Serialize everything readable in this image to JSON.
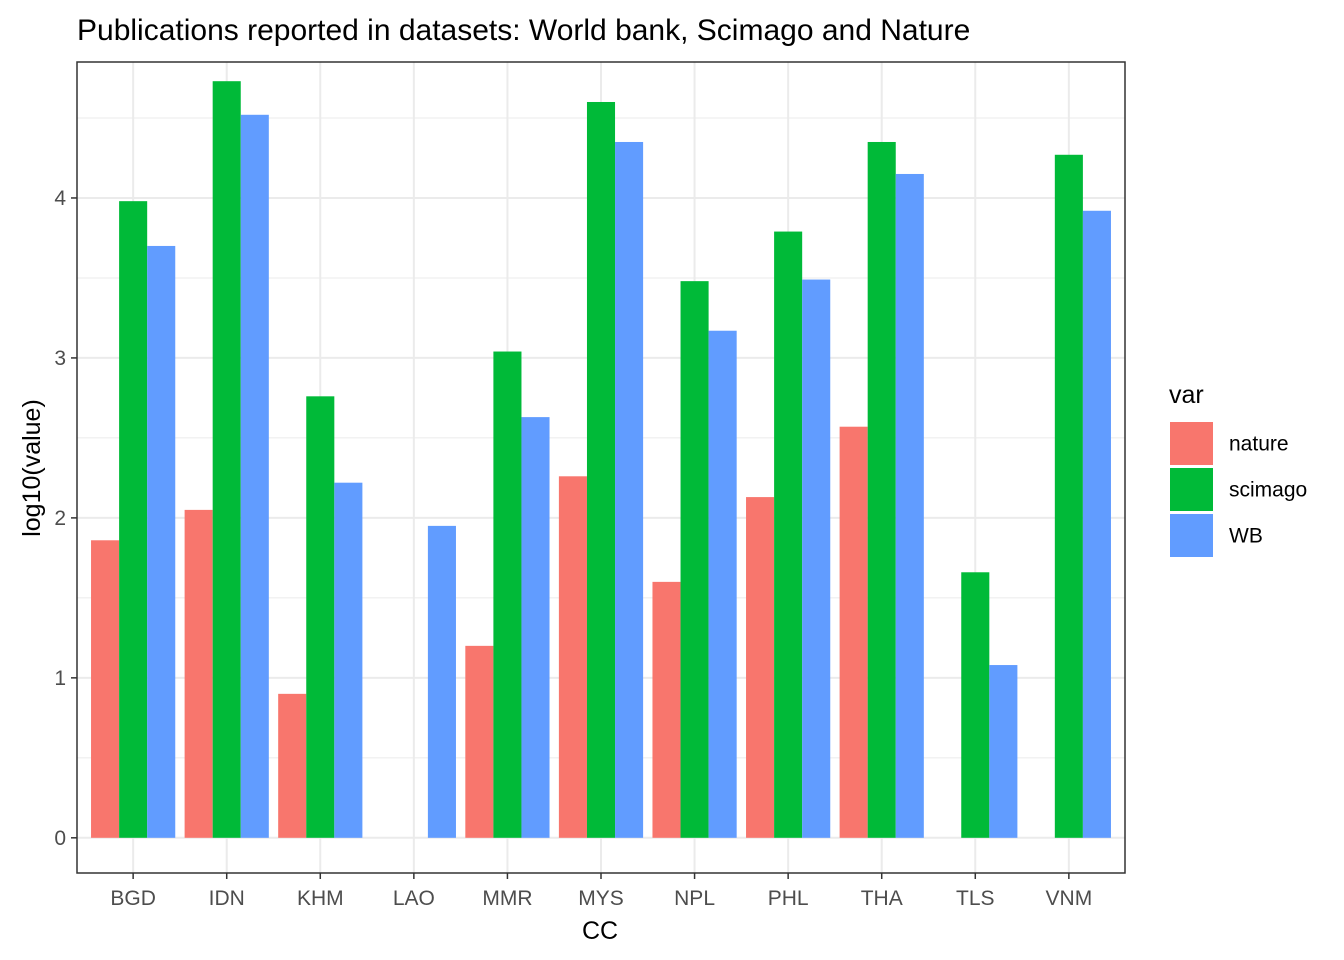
{
  "chart_data": {
    "type": "bar",
    "title": "Publications reported in datasets: World bank, Scimago and Nature",
    "xlabel": "CC",
    "ylabel": "log10(value)",
    "categories": [
      "BGD",
      "IDN",
      "KHM",
      "LAO",
      "MMR",
      "MYS",
      "NPL",
      "PHL",
      "THA",
      "TLS",
      "VNM"
    ],
    "ylim": [
      -0.22,
      4.85
    ],
    "yticks": [
      0,
      1,
      2,
      3,
      4
    ],
    "grid": true,
    "legend": {
      "title": "var",
      "position": "right"
    },
    "series": [
      {
        "name": "nature",
        "color": "#F8766D",
        "values": [
          1.86,
          2.05,
          0.9,
          null,
          1.2,
          2.26,
          1.6,
          2.13,
          2.57,
          null,
          null
        ]
      },
      {
        "name": "scimago",
        "color": "#00BA38",
        "values": [
          3.98,
          4.73,
          2.76,
          null,
          3.04,
          4.6,
          3.48,
          3.79,
          4.35,
          1.66,
          4.27
        ]
      },
      {
        "name": "WB",
        "color": "#619CFF",
        "values": [
          3.7,
          4.52,
          2.22,
          1.95,
          2.63,
          4.35,
          3.17,
          3.49,
          4.15,
          1.08,
          3.92
        ]
      }
    ]
  }
}
